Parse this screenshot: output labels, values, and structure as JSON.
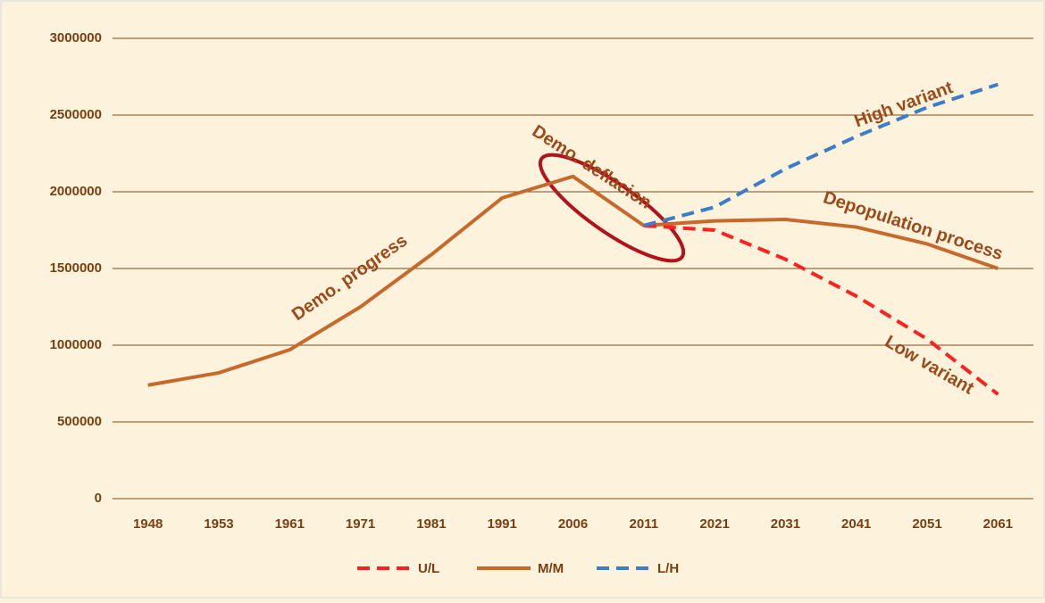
{
  "chart_data": {
    "type": "line",
    "categories": [
      "1948",
      "1953",
      "1961",
      "1971",
      "1981",
      "1991",
      "2006",
      "2011",
      "2021",
      "2031",
      "2041",
      "2051",
      "2061"
    ],
    "series": [
      {
        "name": "U/L",
        "color": "#ff2020",
        "dashed": true,
        "values": [
          null,
          null,
          null,
          null,
          null,
          null,
          null,
          1780000,
          1750000,
          1560000,
          1320000,
          1040000,
          680000
        ]
      },
      {
        "name": "M/M",
        "color": "#c8692c",
        "dashed": false,
        "values": [
          740000,
          820000,
          970000,
          1250000,
          1590000,
          1960000,
          2100000,
          1780000,
          1810000,
          1820000,
          1770000,
          1660000,
          1500000
        ]
      },
      {
        "name": "L/H",
        "color": "#3d7cc9",
        "dashed": true,
        "values": [
          null,
          null,
          null,
          null,
          null,
          null,
          null,
          1780000,
          1900000,
          2150000,
          2360000,
          2550000,
          2700000
        ]
      }
    ],
    "ylim": [
      0,
      3000000
    ],
    "yticks": [
      0,
      500000,
      1000000,
      1500000,
      2000000,
      2500000,
      3000000
    ],
    "grid": true,
    "legend": "bottom",
    "annotations": [
      "Demo. progress",
      "Demo. deflacion",
      "High variant",
      "Depopulation process",
      "Low variant"
    ]
  }
}
